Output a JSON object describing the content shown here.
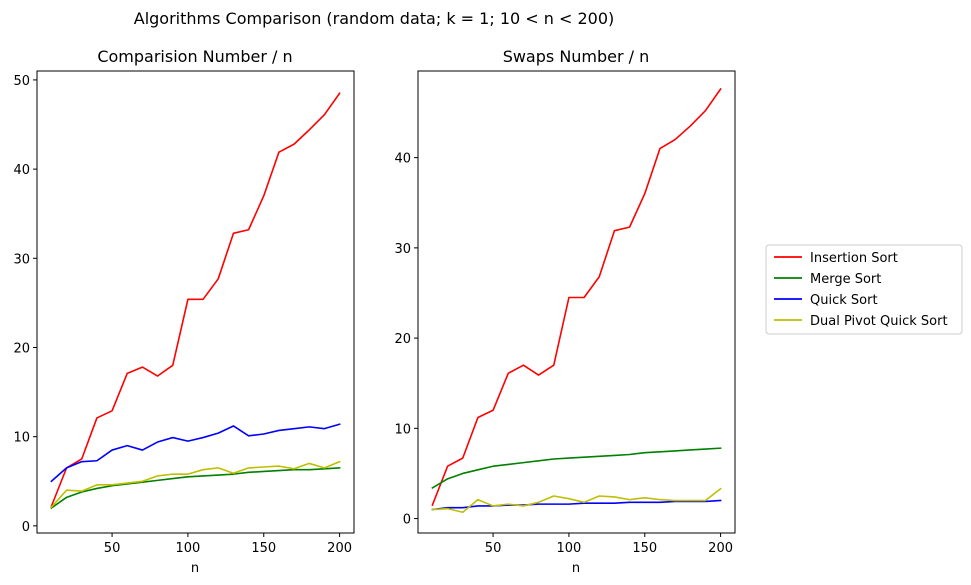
{
  "figure": {
    "suptitle": "Algorithms Comparison (random data;  k = 1;  10 < n < 200)"
  },
  "legend": {
    "placement": "right-center",
    "entries": [
      {
        "label": "Insertion Sort",
        "color": "#ff0000"
      },
      {
        "label": "Merge Sort",
        "color": "#008000"
      },
      {
        "label": "Quick Sort",
        "color": "#0000ff"
      },
      {
        "label": "Dual Pivot Quick Sort",
        "color": "#bfbf00"
      }
    ]
  },
  "chart_data": [
    {
      "type": "line",
      "title": "Comparision Number / n",
      "xlabel": "n",
      "ylabel": "",
      "xlim": [
        0.5,
        209.5
      ],
      "ylim": [
        -0.8,
        51
      ],
      "xticks": [
        50,
        100,
        150,
        200
      ],
      "yticks": [
        0,
        10,
        20,
        30,
        40,
        50
      ],
      "grid": false,
      "x": [
        10,
        20,
        30,
        40,
        50,
        60,
        70,
        80,
        90,
        100,
        110,
        120,
        130,
        140,
        150,
        160,
        170,
        180,
        190,
        200
      ],
      "series": [
        {
          "name": "Insertion Sort",
          "color": "#ff0000",
          "values": [
            2.2,
            6.5,
            7.5,
            12.1,
            12.9,
            17.1,
            17.8,
            16.8,
            18.0,
            25.4,
            25.4,
            27.7,
            32.8,
            33.2,
            37.0,
            41.9,
            42.8,
            44.4,
            46.1,
            48.5
          ]
        },
        {
          "name": "Merge Sort",
          "color": "#008000",
          "values": [
            2.0,
            3.2,
            3.8,
            4.2,
            4.5,
            4.7,
            4.9,
            5.1,
            5.3,
            5.5,
            5.6,
            5.7,
            5.8,
            6.0,
            6.1,
            6.2,
            6.3,
            6.3,
            6.4,
            6.5
          ]
        },
        {
          "name": "Quick Sort",
          "color": "#0000ff",
          "values": [
            5.0,
            6.5,
            7.2,
            7.3,
            8.5,
            9.0,
            8.5,
            9.4,
            9.9,
            9.5,
            9.9,
            10.4,
            11.2,
            10.1,
            10.3,
            10.7,
            10.9,
            11.1,
            10.9,
            11.4
          ]
        },
        {
          "name": "Dual Pivot Quick Sort",
          "color": "#bfbf00",
          "values": [
            2.1,
            4.0,
            3.9,
            4.6,
            4.6,
            4.8,
            5.0,
            5.6,
            5.8,
            5.8,
            6.3,
            6.5,
            5.9,
            6.5,
            6.6,
            6.7,
            6.4,
            7.0,
            6.5,
            7.2
          ]
        }
      ]
    },
    {
      "type": "line",
      "title": "Swaps Number / n",
      "xlabel": "n",
      "ylabel": "",
      "xlim": [
        0.5,
        209.5
      ],
      "ylim": [
        -1.6,
        49.6
      ],
      "xticks": [
        50,
        100,
        150,
        200
      ],
      "yticks": [
        0,
        10,
        20,
        30,
        40
      ],
      "grid": false,
      "x": [
        10,
        20,
        30,
        40,
        50,
        60,
        70,
        80,
        90,
        100,
        110,
        120,
        130,
        140,
        150,
        160,
        170,
        180,
        190,
        200
      ],
      "series": [
        {
          "name": "Insertion Sort",
          "color": "#ff0000",
          "values": [
            1.5,
            5.8,
            6.7,
            11.2,
            12.0,
            16.1,
            17.0,
            15.9,
            17.0,
            24.5,
            24.5,
            26.8,
            31.9,
            32.3,
            36.0,
            41.0,
            42.0,
            43.5,
            45.2,
            47.6
          ]
        },
        {
          "name": "Merge Sort",
          "color": "#008000",
          "values": [
            3.4,
            4.4,
            5.0,
            5.4,
            5.8,
            6.0,
            6.2,
            6.4,
            6.6,
            6.7,
            6.8,
            6.9,
            7.0,
            7.1,
            7.3,
            7.4,
            7.5,
            7.6,
            7.7,
            7.8
          ]
        },
        {
          "name": "Quick Sort",
          "color": "#0000ff",
          "values": [
            1.0,
            1.2,
            1.2,
            1.4,
            1.4,
            1.5,
            1.5,
            1.6,
            1.6,
            1.6,
            1.7,
            1.7,
            1.7,
            1.8,
            1.8,
            1.8,
            1.9,
            1.9,
            1.9,
            2.0
          ]
        },
        {
          "name": "Dual Pivot Quick Sort",
          "color": "#bfbf00",
          "values": [
            1.0,
            1.1,
            0.7,
            2.1,
            1.4,
            1.6,
            1.4,
            1.8,
            2.5,
            2.2,
            1.8,
            2.5,
            2.4,
            2.1,
            2.3,
            2.1,
            2.0,
            2.0,
            2.0,
            3.3
          ]
        }
      ]
    }
  ]
}
